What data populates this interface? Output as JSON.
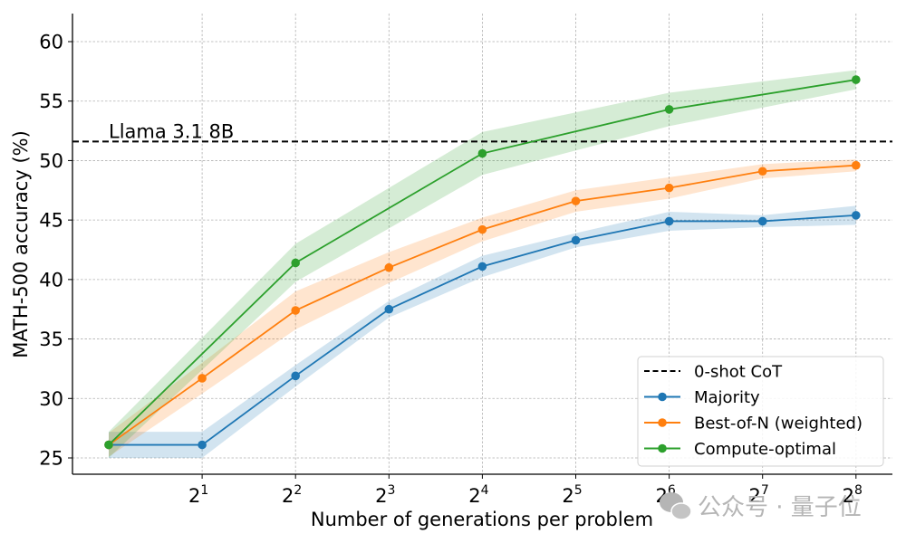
{
  "chart_data": {
    "type": "line",
    "title": "",
    "xlabel": "Number of generations per problem",
    "ylabel": "MATH-500 accuracy (%)",
    "x_scale": "log2",
    "x": [
      1,
      2,
      4,
      8,
      16,
      32,
      64,
      128,
      256
    ],
    "x_tick_labels": [
      {
        "base": "2",
        "exp": "1",
        "value": 2
      },
      {
        "base": "2",
        "exp": "2",
        "value": 4
      },
      {
        "base": "2",
        "exp": "3",
        "value": 8
      },
      {
        "base": "2",
        "exp": "4",
        "value": 16
      },
      {
        "base": "2",
        "exp": "5",
        "value": 32
      },
      {
        "base": "2",
        "exp": "6",
        "value": 64
      },
      {
        "base": "2",
        "exp": "7",
        "value": 128
      },
      {
        "base": "2",
        "exp": "8",
        "value": 256
      }
    ],
    "ylim": [
      23.5,
      62.3
    ],
    "y_ticks": [
      25,
      30,
      35,
      40,
      45,
      50,
      55,
      60
    ],
    "grid": true,
    "legend_placement": "bottom-right",
    "series": [
      {
        "name": "Majority",
        "color": "#1f77b4",
        "x": [
          1,
          2,
          4,
          8,
          16,
          32,
          64,
          128,
          256
        ],
        "values": [
          26.1,
          26.1,
          31.9,
          37.5,
          41.1,
          43.3,
          44.9,
          44.9,
          45.4
        ],
        "band": [
          1.1,
          1.1,
          0.9,
          0.7,
          0.9,
          0.6,
          0.8,
          0.5,
          0.8
        ]
      },
      {
        "name": "Best-of-N (weighted)",
        "color": "#ff7f0e",
        "x": [
          1,
          2,
          4,
          8,
          16,
          32,
          64,
          128,
          256
        ],
        "values": [
          26.1,
          31.7,
          37.4,
          41.0,
          44.2,
          46.6,
          47.7,
          49.1,
          49.6
        ],
        "band": [
          1.0,
          1.3,
          1.6,
          1.3,
          1.0,
          0.9,
          0.9,
          0.6,
          0.5
        ]
      },
      {
        "name": "Compute-optimal",
        "color": "#2ca02c",
        "x": [
          1,
          4,
          16,
          64,
          256
        ],
        "values": [
          26.1,
          41.4,
          50.6,
          54.3,
          56.8
        ],
        "band": [
          1.1,
          1.6,
          1.8,
          1.4,
          0.8
        ]
      }
    ],
    "reference_line": {
      "name": "0-shot CoT",
      "value": 51.6,
      "color": "#000000",
      "style": "dashed",
      "annotation": "Llama 3.1 8B"
    },
    "legend": [
      "0-shot CoT",
      "Majority",
      "Best-of-N (weighted)",
      "Compute-optimal"
    ]
  },
  "watermark": "公众号 · 量子位"
}
